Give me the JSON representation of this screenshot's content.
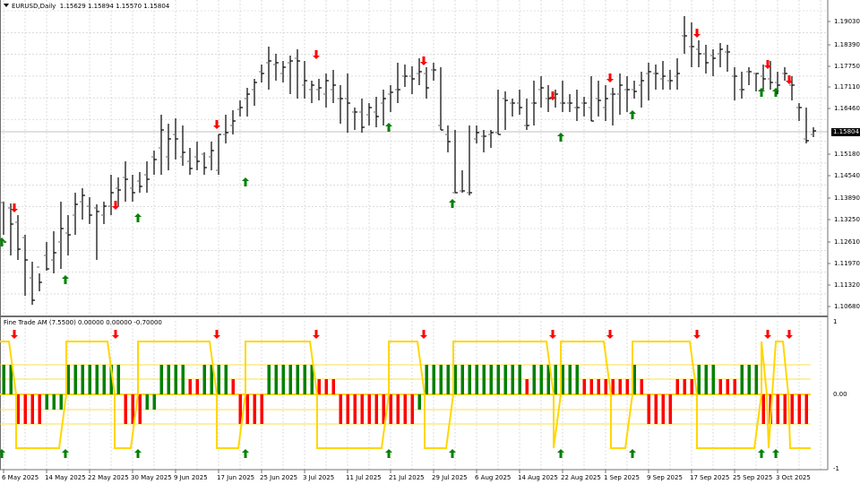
{
  "chart": {
    "symbol": "EURUSD",
    "timeframe": "Daily",
    "header_label": "EURUSD,Daily",
    "ohlc_label": "1.15629 1.15894 1.15570 1.15804",
    "last_price": "1.15804"
  },
  "indicator": {
    "title": "Fine Trade AM (7.5500) 0.00000 0.00000 -0.70000",
    "scale_labels": [
      "1",
      "0.00",
      "-1"
    ]
  },
  "price_axis": {
    "labels": [
      "1.19030",
      "1.18390",
      "1.17750",
      "1.17110",
      "1.16460",
      "1.15180",
      "1.14540",
      "1.13890",
      "1.13250",
      "1.12610",
      "1.11970",
      "1.11320",
      "1.10680"
    ]
  },
  "time_axis": {
    "labels": [
      "6 May 2025",
      "14 May 2025",
      "22 May 2025",
      "30 May 2025",
      "9 Jun 2025",
      "17 Jun 2025",
      "25 Jun 2025",
      "3 Jul 2025",
      "11 Jul 2025",
      "21 Jul 2025",
      "29 Jul 2025",
      "6 Aug 2025",
      "14 Aug 2025",
      "22 Aug 2025",
      "1 Sep 2025",
      "9 Sep 2025",
      "17 Sep 2025",
      "25 Sep 2025",
      "3 Oct 2025"
    ]
  },
  "colors": {
    "bull": "#008000",
    "bear": "#ff0000",
    "line": "#ffd700",
    "grid": "#c8c8c8",
    "bar": "#000000"
  },
  "chart_data": {
    "type": "ohlc",
    "title": "EURUSD,Daily",
    "ylim": [
      1.104,
      1.195
    ],
    "bars_y_px_comment": "bars given as [high_y, low_y, open_y, close_y] in screen pixels, x = 4 + 8*i",
    "bars": [
      [
        225,
        262,
        226,
        270
      ],
      [
        227,
        285,
        232,
        250
      ],
      [
        240,
        290,
        248,
        278
      ],
      [
        262,
        330,
        265,
        290
      ],
      [
        292,
        340,
        310,
        335
      ],
      [
        305,
        325,
        298,
        315
      ],
      [
        270,
        302,
        285,
        300
      ],
      [
        258,
        305,
        290,
        282
      ],
      [
        225,
        300,
        270,
        255
      ],
      [
        240,
        285,
        260,
        262
      ],
      [
        215,
        262,
        240,
        228
      ],
      [
        210,
        245,
        225,
        218
      ],
      [
        220,
        250,
        230,
        240
      ],
      [
        228,
        290,
        232,
        236
      ],
      [
        225,
        250,
        240,
        230
      ],
      [
        195,
        240,
        230,
        215
      ],
      [
        198,
        230,
        210,
        212
      ],
      [
        180,
        225,
        198,
        200
      ],
      [
        195,
        225,
        210,
        215
      ],
      [
        192,
        215,
        202,
        208
      ],
      [
        180,
        215,
        195,
        200
      ],
      [
        168,
        195,
        175,
        178
      ],
      [
        128,
        195,
        165,
        145
      ],
      [
        138,
        190,
        175,
        155
      ],
      [
        132,
        178,
        150,
        155
      ],
      [
        140,
        185,
        175,
        170
      ],
      [
        165,
        195,
        180,
        188
      ],
      [
        158,
        190,
        175,
        180
      ],
      [
        170,
        195,
        172,
        187
      ],
      [
        158,
        190,
        175,
        168
      ],
      [
        150,
        195,
        190,
        150
      ],
      [
        128,
        160,
        150,
        148
      ],
      [
        123,
        150,
        140,
        135
      ],
      [
        112,
        130,
        122,
        120
      ],
      [
        98,
        130,
        110,
        105
      ],
      [
        88,
        118,
        100,
        92
      ],
      [
        72,
        92,
        80,
        82
      ],
      [
        52,
        100,
        70,
        68
      ],
      [
        60,
        90,
        72,
        70
      ],
      [
        68,
        92,
        82,
        75
      ],
      [
        62,
        105,
        70,
        68
      ],
      [
        55,
        110,
        65,
        68
      ],
      [
        68,
        110,
        95,
        90
      ],
      [
        90,
        115,
        100,
        95
      ],
      [
        88,
        112,
        100,
        98
      ],
      [
        82,
        120,
        105,
        90
      ],
      [
        78,
        115,
        100,
        95
      ],
      [
        95,
        138,
        110,
        110
      ],
      [
        82,
        148,
        110,
        115
      ],
      [
        120,
        145,
        125,
        125
      ],
      [
        110,
        148,
        125,
        142
      ],
      [
        115,
        140,
        128,
        120
      ],
      [
        108,
        142,
        125,
        130
      ],
      [
        100,
        140,
        115,
        110
      ],
      [
        95,
        125,
        105,
        103
      ],
      [
        70,
        115,
        100,
        100
      ],
      [
        72,
        97,
        85,
        85
      ],
      [
        74,
        105,
        85,
        88
      ],
      [
        65,
        95,
        82,
        80
      ],
      [
        75,
        110,
        82,
        98
      ],
      [
        70,
        90,
        78,
        78
      ],
      [
        75,
        145,
        140,
        145
      ],
      [
        140,
        170,
        150,
        158
      ],
      [
        145,
        215,
        215,
        215
      ],
      [
        190,
        215,
        213,
        213
      ],
      [
        140,
        218,
        215,
        215
      ],
      [
        140,
        160,
        155,
        148
      ],
      [
        145,
        170,
        152,
        152
      ],
      [
        145,
        165,
        150,
        148
      ],
      [
        100,
        150,
        148,
        150
      ],
      [
        102,
        145,
        110,
        112
      ],
      [
        110,
        130,
        115,
        115
      ],
      [
        100,
        128,
        115,
        120
      ],
      [
        110,
        145,
        140,
        140
      ],
      [
        90,
        140,
        115,
        115
      ],
      [
        85,
        120,
        100,
        98
      ],
      [
        95,
        125,
        110,
        110
      ],
      [
        100,
        120,
        105,
        105
      ],
      [
        90,
        125,
        115,
        115
      ],
      [
        105,
        125,
        115,
        115
      ],
      [
        100,
        135,
        120,
        120
      ],
      [
        108,
        130,
        115,
        115
      ],
      [
        85,
        135,
        120,
        135
      ],
      [
        90,
        130,
        110,
        112
      ],
      [
        95,
        135,
        120,
        110
      ],
      [
        98,
        140,
        105,
        105
      ],
      [
        82,
        128,
        105,
        95
      ],
      [
        85,
        125,
        100,
        100
      ],
      [
        90,
        110,
        100,
        102
      ],
      [
        80,
        120,
        95,
        90
      ],
      [
        70,
        112,
        82,
        80
      ],
      [
        72,
        100,
        82,
        82
      ],
      [
        68,
        100,
        88,
        85
      ],
      [
        78,
        100,
        90,
        90
      ],
      [
        65,
        100,
        85,
        82
      ],
      [
        18,
        60,
        40,
        40
      ],
      [
        25,
        75,
        52,
        52
      ],
      [
        45,
        75,
        55,
        60
      ],
      [
        50,
        82,
        60,
        70
      ],
      [
        55,
        85,
        62,
        65
      ],
      [
        48,
        75,
        60,
        55
      ],
      [
        50,
        80,
        58,
        58
      ],
      [
        75,
        112,
        85,
        85
      ],
      [
        80,
        110,
        100,
        100
      ],
      [
        75,
        95,
        80,
        80
      ],
      [
        82,
        102,
        82,
        82
      ],
      [
        72,
        100,
        85,
        88
      ],
      [
        68,
        100,
        88,
        92
      ],
      [
        80,
        105,
        92,
        95
      ],
      [
        75,
        90,
        82,
        82
      ],
      [
        85,
        112,
        95,
        95
      ],
      [
        115,
        135,
        120,
        120
      ],
      [
        120,
        160,
        155,
        157
      ],
      [
        142,
        153,
        150,
        146
      ]
    ],
    "buy_arrows_bar_index": [
      0,
      9,
      19,
      34,
      54,
      63,
      77,
      86,
      106,
      108
    ],
    "sell_arrows_bar_index": [
      2,
      16,
      30,
      44,
      59,
      77,
      85,
      96,
      107,
      110
    ],
    "indicator": {
      "type": "histogram+line",
      "range": [
        -1,
        1
      ],
      "levels": [
        0.4,
        0.2,
        0,
        -0.2,
        -0.7
      ]
    }
  }
}
